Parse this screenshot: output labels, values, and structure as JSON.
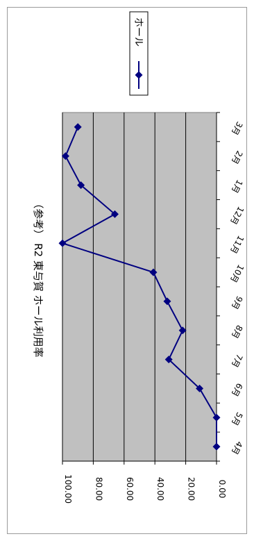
{
  "chart_data": {
    "type": "line",
    "title": "（参考） R2  東与賀  ホール利用率",
    "categories": [
      "4月",
      "5月",
      "6月",
      "7月",
      "8月",
      "9月",
      "10月",
      "11月",
      "12月",
      "1月",
      "2月",
      "3月"
    ],
    "series": [
      {
        "name": "ホール",
        "values": [
          0.0,
          0.0,
          11.0,
          31.0,
          22.0,
          32.0,
          41.0,
          100.0,
          66.0,
          88.0,
          98.0,
          90.0
        ],
        "color": "#000080",
        "marker": "diamond"
      }
    ],
    "ylim": [
      0,
      100
    ],
    "yticks": [
      "0.00",
      "20.00",
      "40.00",
      "60.00",
      "80.00",
      "100.00"
    ],
    "grid": true,
    "plot_background": "#c0c0c0",
    "legend_position": "top-right",
    "orientation": "rotated-90-clockwise"
  }
}
